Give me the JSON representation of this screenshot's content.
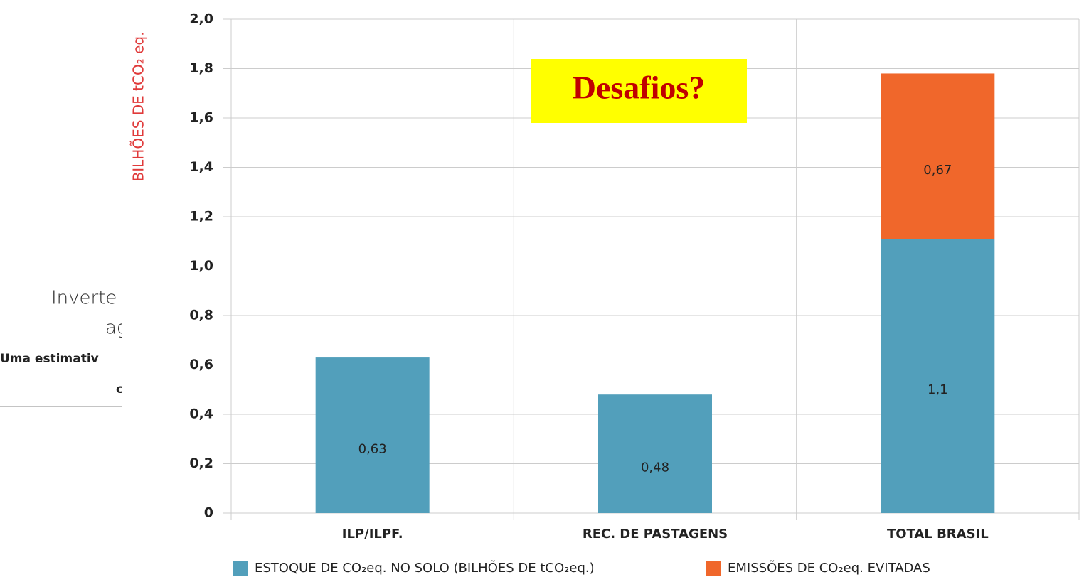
{
  "chart_data": {
    "type": "stacked-bar",
    "ylabel": "BILHÕES DE tCO₂ eq.",
    "annotation": "Desafios?",
    "categories": [
      "ILP/ILPF.",
      "REC. DE PASTAGENS",
      "TOTAL BRASIL"
    ],
    "series": [
      {
        "name": "ESTOQUE DE CO₂eq. NO SOLO (BILHÕES DE tCO₂eq.)",
        "color": "#529fbb",
        "values": [
          0.63,
          0.48,
          1.11
        ],
        "value_labels": [
          "0,63",
          "0,48",
          "1,1"
        ]
      },
      {
        "name": "EMISSÕES DE CO₂eq. EVITADAS",
        "color": "#f0672b",
        "values": [
          null,
          null,
          0.67
        ],
        "value_labels": [
          null,
          null,
          "0,67"
        ]
      }
    ],
    "ylim": [
      0,
      2.0
    ],
    "yticks": [
      0,
      {
        "value": 0.2,
        "label": "0,2"
      },
      {
        "value": 0.4,
        "label": "0,4"
      },
      {
        "value": 0.6,
        "label": "0,6"
      },
      {
        "value": 0.8,
        "label": "0,8"
      },
      {
        "value": 1.0,
        "label": "1,0"
      },
      {
        "value": 1.2,
        "label": "1,2"
      },
      {
        "value": 1.4,
        "label": "1,4"
      },
      {
        "value": 1.6,
        "label": "1,6"
      },
      {
        "value": 1.8,
        "label": "1,8"
      },
      {
        "value": 2.0,
        "label": "2,0"
      }
    ],
    "grid": true,
    "legend": "bottom"
  },
  "background_fragments": [
    "Inverte",
    "ag",
    "Uma estimativ",
    "c"
  ]
}
